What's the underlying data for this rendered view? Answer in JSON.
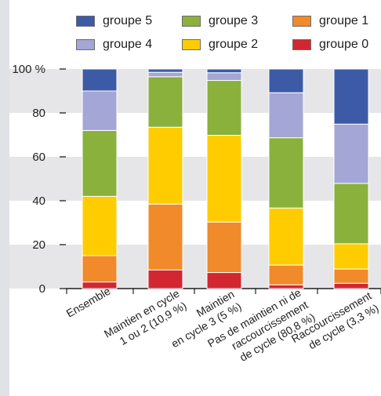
{
  "chart_data": {
    "type": "bar",
    "stacked": true,
    "categories": [
      "Ensemble",
      "Maintien en cycle 1 ou 2 (10,9 %)",
      "Maintien en cycle 3 (5 %)",
      "Pas de maintien ni de raccourcissement de cycle (80,8 %)",
      "Raccourcissement de cycle (3,3 %)"
    ],
    "category_lines": [
      [
        "Ensemble"
      ],
      [
        "Maintien en cycle",
        "1 ou 2 (10,9 %)"
      ],
      [
        "Maintien",
        "en cycle 3 (5 %)"
      ],
      [
        "Pas de maintien ni de",
        "raccourcissement",
        "de cycle (80,8 %)"
      ],
      [
        "Raccourcissement",
        "de cycle (3,3 %)"
      ]
    ],
    "series": [
      {
        "name": "groupe 0",
        "color": "#d22630",
        "values": [
          3,
          8.5,
          7.3,
          1.7,
          2.4
        ]
      },
      {
        "name": "groupe 1",
        "color": "#f08a2b",
        "values": [
          12,
          30,
          23,
          9,
          6.5
        ]
      },
      {
        "name": "groupe 2",
        "color": "#ffcc00",
        "values": [
          27,
          35,
          39.5,
          26,
          11.5
        ]
      },
      {
        "name": "groupe 3",
        "color": "#8ab13c",
        "values": [
          30,
          23,
          25,
          32,
          27.5
        ]
      },
      {
        "name": "groupe 4",
        "color": "#a4a6d5",
        "values": [
          18,
          2,
          3.5,
          20.5,
          27
        ]
      },
      {
        "name": "groupe 5",
        "color": "#3c5aa6",
        "values": [
          10,
          1.5,
          1.7,
          10.8,
          25.1
        ]
      }
    ],
    "legend_order": [
      "groupe 5",
      "groupe 3",
      "groupe 1",
      "groupe 4",
      "groupe 2",
      "groupe 0"
    ],
    "y_ticks": [
      "100 %",
      "80",
      "60",
      "40",
      "20",
      "0"
    ],
    "ylim": [
      0,
      100
    ],
    "grid": "alternating horizontal bands",
    "legend_position": "top"
  }
}
